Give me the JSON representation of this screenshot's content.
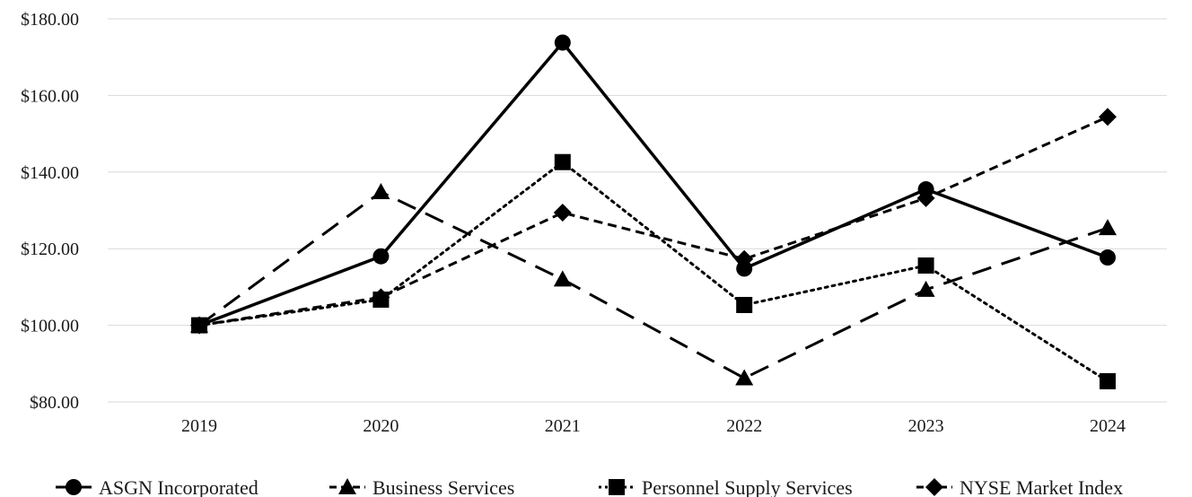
{
  "chart_data": {
    "type": "line",
    "categories": [
      "2019",
      "2020",
      "2021",
      "2022",
      "2023",
      "2024"
    ],
    "series": [
      {
        "name": "ASGN Incorporated",
        "values": [
          100.0,
          118.0,
          173.8,
          114.8,
          135.5,
          117.7
        ],
        "marker": "circle",
        "dash": "solid"
      },
      {
        "name": "Business Services",
        "values": [
          100.0,
          134.8,
          112.0,
          86.2,
          109.3,
          125.4
        ],
        "marker": "triangle",
        "dash": "long-dash"
      },
      {
        "name": "Personnel Supply Services",
        "values": [
          100.0,
          106.7,
          142.6,
          105.3,
          115.6,
          85.4
        ],
        "marker": "square",
        "dash": "dotted"
      },
      {
        "name": "NYSE Market Index",
        "values": [
          100.0,
          107.3,
          129.4,
          117.3,
          133.2,
          154.4
        ],
        "marker": "diamond",
        "dash": "dashed"
      }
    ],
    "y_ticks": [
      "$80.00",
      "$100.00",
      "$120.00",
      "$140.00",
      "$160.00",
      "$180.00"
    ],
    "ylim": [
      80,
      180
    ],
    "grid": "horizontal",
    "legend_position": "bottom",
    "title": "",
    "xlabel": "",
    "ylabel": "",
    "line_color": "#000000"
  }
}
